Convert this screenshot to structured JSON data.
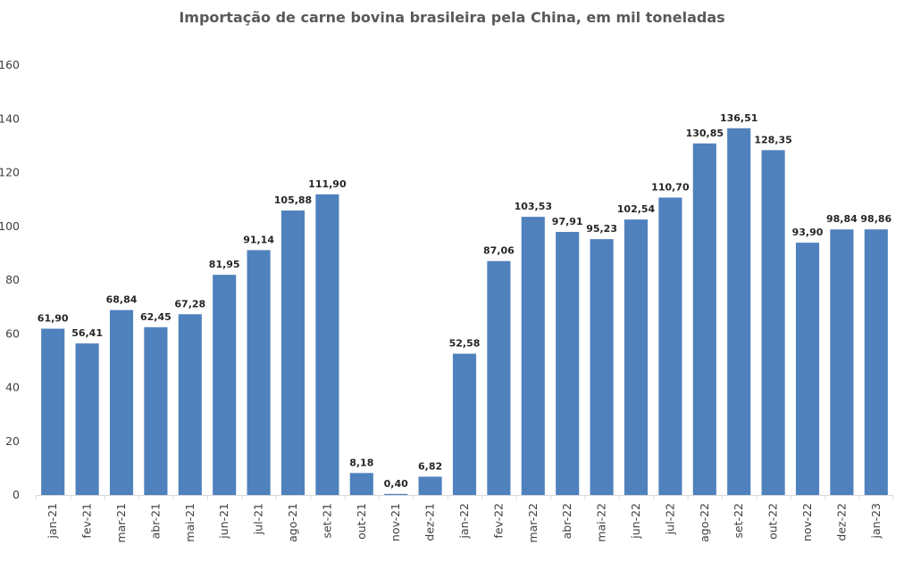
{
  "chart_data": {
    "type": "bar",
    "title": "Importação de carne bovina brasileira pela China, em mil toneladas",
    "xlabel": "",
    "ylabel": "",
    "ylim": [
      0,
      160
    ],
    "yticks": [
      0,
      20,
      40,
      60,
      80,
      100,
      120,
      140,
      160
    ],
    "grid": false,
    "legend": "none",
    "bar_color": "#4f81bd",
    "categories": [
      "jan-21",
      "fev-21",
      "mar-21",
      "abr-21",
      "mai-21",
      "jun-21",
      "jul-21",
      "ago-21",
      "set-21",
      "out-21",
      "nov-21",
      "dez-21",
      "jan-22",
      "fev-22",
      "mar-22",
      "abr-22",
      "mai-22",
      "jun-22",
      "jul-22",
      "ago-22",
      "set-22",
      "out-22",
      "nov-22",
      "dez-22",
      "jan-23"
    ],
    "values": [
      61.9,
      56.41,
      68.84,
      62.45,
      67.28,
      81.95,
      91.14,
      105.88,
      111.9,
      8.18,
      0.4,
      6.82,
      52.58,
      87.06,
      103.53,
      97.91,
      95.23,
      102.54,
      110.7,
      130.85,
      136.51,
      128.35,
      93.9,
      98.84,
      98.86
    ],
    "value_labels": [
      "61,90",
      "56,41",
      "68,84",
      "62,45",
      "67,28",
      "81,95",
      "91,14",
      "105,88",
      "111,90",
      "8,18",
      "0,40",
      "6,82",
      "52,58",
      "87,06",
      "103,53",
      "97,91",
      "95,23",
      "102,54",
      "110,70",
      "130,85",
      "136,51",
      "128,35",
      "93,90",
      "98,84",
      "98,86"
    ]
  }
}
